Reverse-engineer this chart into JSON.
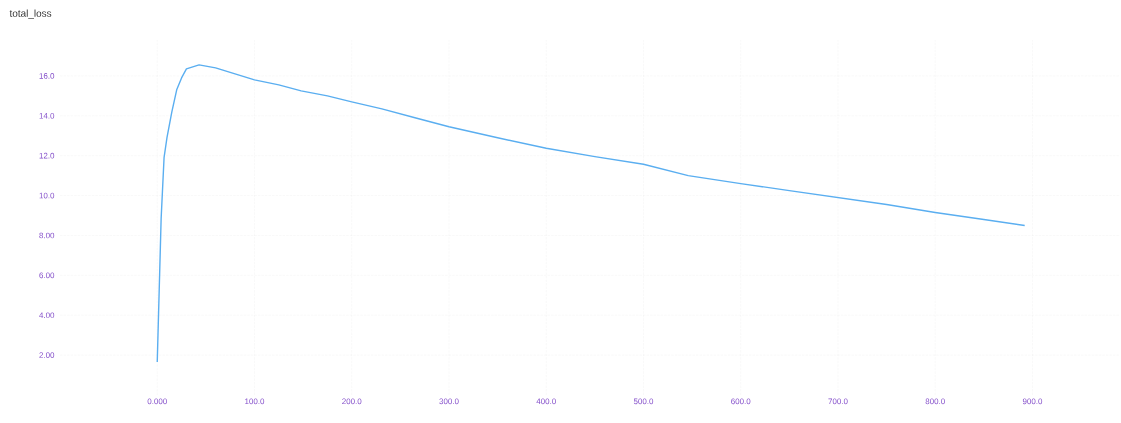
{
  "chart_data": {
    "type": "line",
    "title": "total_loss",
    "x": [
      0,
      4,
      7,
      10,
      15,
      20,
      25,
      30,
      43,
      60,
      80,
      100,
      125,
      148,
      175,
      200,
      231,
      265,
      300,
      350,
      400,
      450,
      500,
      546,
      600,
      650,
      700,
      750,
      800,
      850,
      892
    ],
    "series": [
      {
        "color": "#5aaef0",
        "values": [
          1.65,
          8.85,
          11.9,
          12.9,
          14.2,
          15.3,
          15.9,
          16.35,
          16.55,
          16.4,
          16.1,
          15.8,
          15.55,
          15.25,
          15.0,
          14.7,
          14.35,
          13.9,
          13.45,
          12.9,
          12.37,
          11.95,
          11.57,
          11.0,
          10.6,
          10.25,
          9.9,
          9.55,
          9.15,
          8.8,
          8.5
        ]
      }
    ],
    "xlim": [
      -100,
      990
    ],
    "ylim": [
      0,
      17.8
    ],
    "xticks": [
      {
        "value": 0,
        "label": "0.000"
      },
      {
        "value": 100,
        "label": "100.0"
      },
      {
        "value": 200,
        "label": "200.0"
      },
      {
        "value": 300,
        "label": "300.0"
      },
      {
        "value": 400,
        "label": "400.0"
      },
      {
        "value": 500,
        "label": "500.0"
      },
      {
        "value": 600,
        "label": "600.0"
      },
      {
        "value": 700,
        "label": "700.0"
      },
      {
        "value": 800,
        "label": "800.0"
      },
      {
        "value": 900,
        "label": "900.0"
      }
    ],
    "yticks": [
      {
        "value": 2,
        "label": "2.00"
      },
      {
        "value": 4,
        "label": "4.00"
      },
      {
        "value": 6,
        "label": "6.00"
      },
      {
        "value": 8,
        "label": "8.00"
      },
      {
        "value": 10,
        "label": "10.0"
      },
      {
        "value": 12,
        "label": "12.0"
      },
      {
        "value": 14,
        "label": "14.0"
      },
      {
        "value": 16,
        "label": "16.0"
      }
    ],
    "grid": true,
    "marker": "none",
    "line_style": "solid"
  }
}
